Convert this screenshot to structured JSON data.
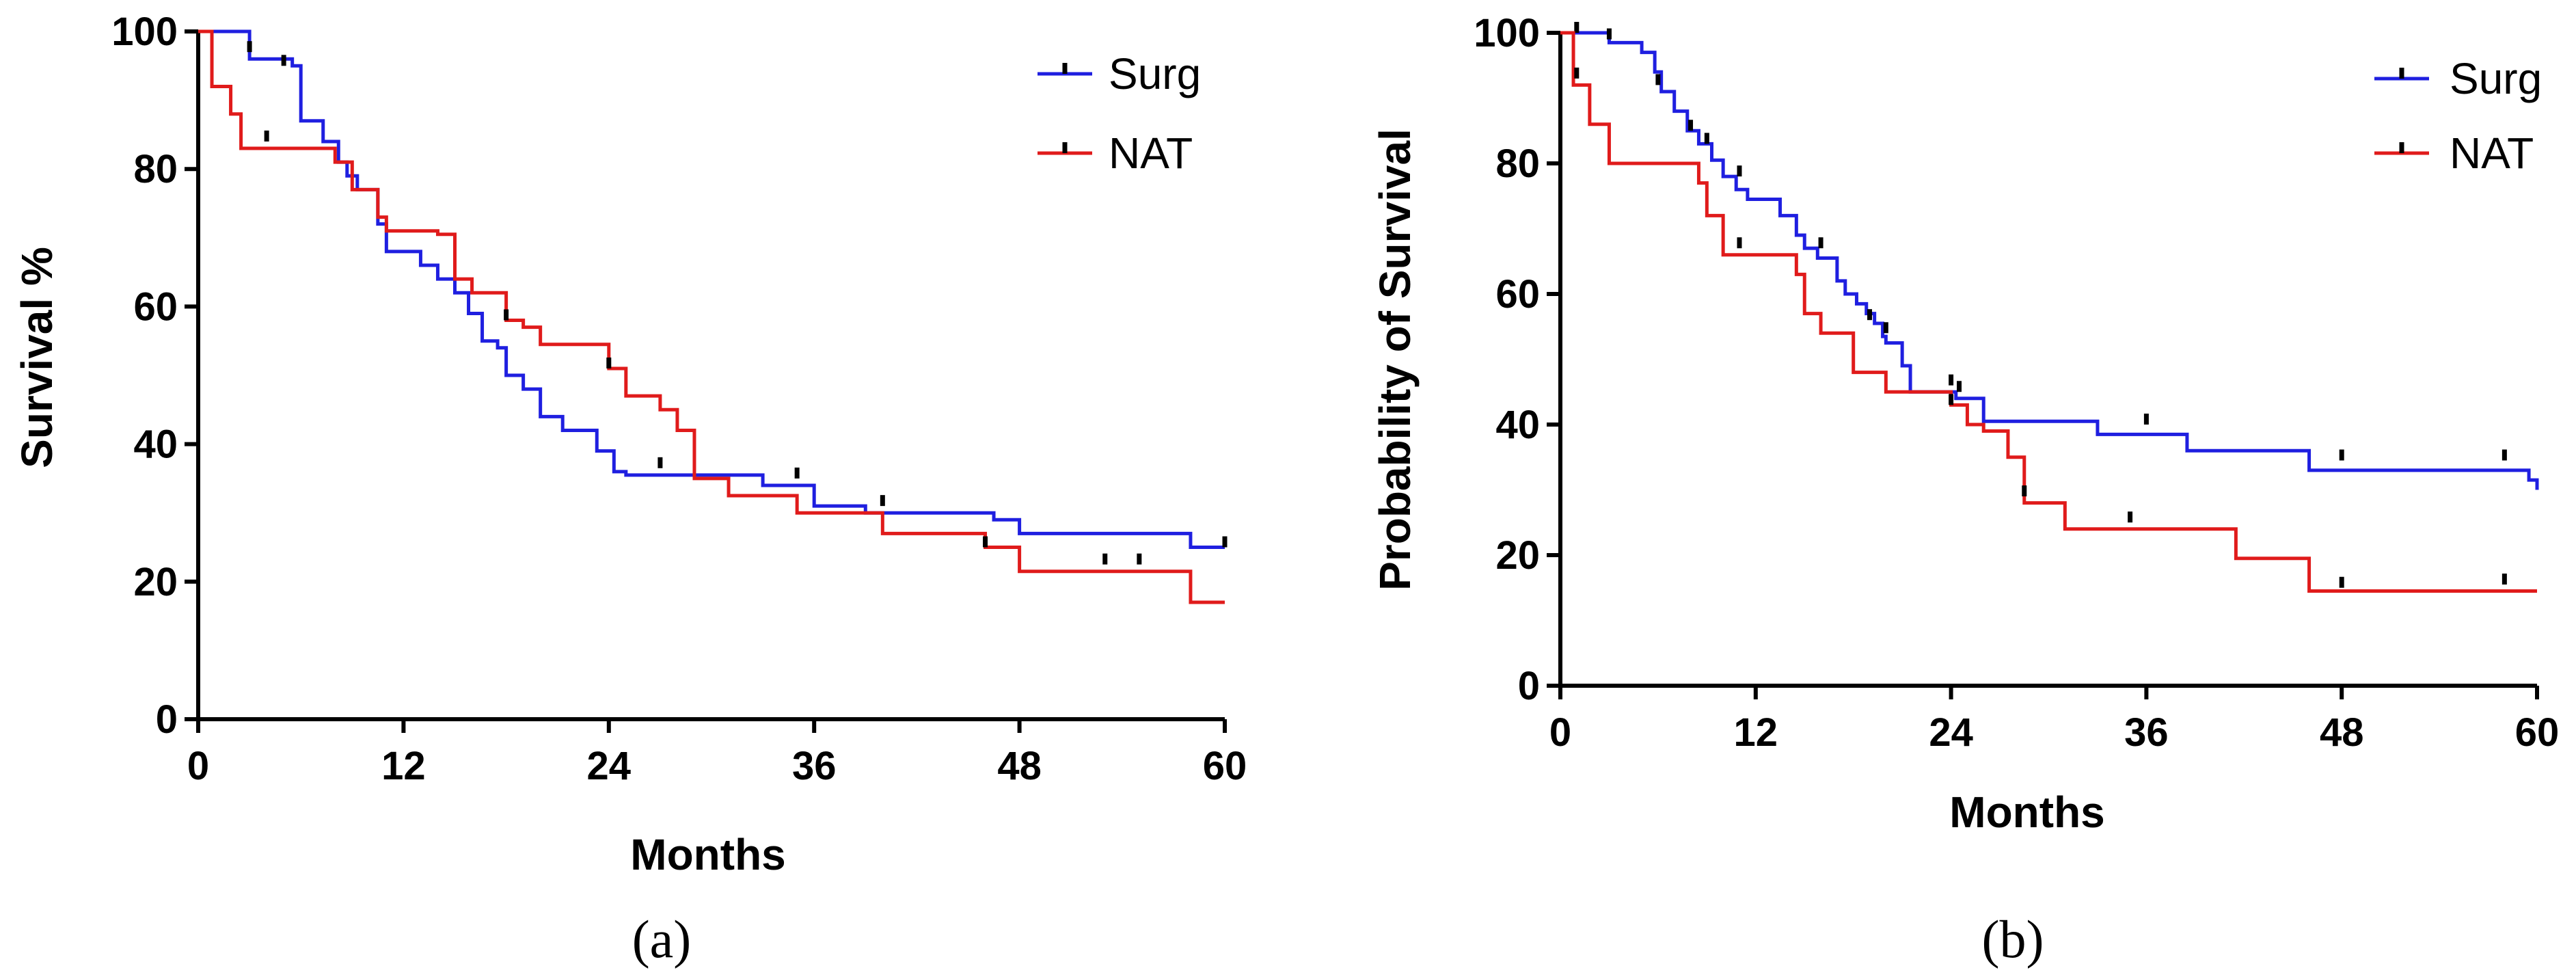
{
  "chart_data": [
    {
      "type": "line",
      "panel_label": "(a)",
      "ylabel": "Survival %",
      "xlabel": "Months",
      "xlim": [
        0,
        60
      ],
      "ylim": [
        0,
        100
      ],
      "xticks": [
        "0",
        "12",
        "24",
        "36",
        "48",
        "60"
      ],
      "yticks": [
        "0",
        "20",
        "40",
        "60",
        "80",
        "100"
      ],
      "xtick_values": [
        0,
        12,
        24,
        36,
        48,
        60
      ],
      "ytick_values": [
        0,
        20,
        40,
        60,
        80,
        100
      ],
      "legend_position": "top-right",
      "series": [
        {
          "name": "Surg",
          "color": "#1f1fe0",
          "steps": [
            [
              0,
              100
            ],
            [
              3,
              96
            ],
            [
              5.5,
              95
            ],
            [
              6,
              87
            ],
            [
              7.3,
              84
            ],
            [
              8.2,
              81
            ],
            [
              8.7,
              79
            ],
            [
              9.3,
              77
            ],
            [
              10.5,
              72
            ],
            [
              11,
              68
            ],
            [
              13,
              66
            ],
            [
              14,
              64
            ],
            [
              15,
              62
            ],
            [
              15.8,
              59
            ],
            [
              16.6,
              55
            ],
            [
              17.5,
              54
            ],
            [
              18,
              50
            ],
            [
              19,
              48
            ],
            [
              20,
              44
            ],
            [
              21.3,
              42
            ],
            [
              23.3,
              39
            ],
            [
              24.3,
              36
            ],
            [
              25,
              35.5
            ],
            [
              33,
              34
            ],
            [
              36,
              31
            ],
            [
              39,
              30
            ],
            [
              46.5,
              29
            ],
            [
              48,
              27
            ],
            [
              58,
              25
            ],
            [
              60,
              25
            ]
          ],
          "censors": [
            [
              3,
              97
            ],
            [
              5,
              95
            ],
            [
              27,
              36.5
            ],
            [
              35,
              35
            ],
            [
              40,
              31
            ],
            [
              60,
              25
            ]
          ]
        },
        {
          "name": "NAT",
          "color": "#e01b1b",
          "steps": [
            [
              0,
              100
            ],
            [
              0.8,
              92
            ],
            [
              1.9,
              88
            ],
            [
              2.5,
              83
            ],
            [
              8,
              81
            ],
            [
              9,
              77
            ],
            [
              10.5,
              73
            ],
            [
              11,
              71
            ],
            [
              14,
              70.5
            ],
            [
              15,
              64
            ],
            [
              16,
              62
            ],
            [
              18,
              58
            ],
            [
              19,
              57
            ],
            [
              20,
              54.5
            ],
            [
              24,
              51
            ],
            [
              25,
              47
            ],
            [
              27,
              45
            ],
            [
              28,
              42
            ],
            [
              29,
              35
            ],
            [
              31,
              32.5
            ],
            [
              35,
              30
            ],
            [
              40,
              27
            ],
            [
              46,
              25
            ],
            [
              48,
              21.5
            ],
            [
              58,
              17
            ],
            [
              60,
              17
            ]
          ],
          "censors": [
            [
              4,
              84
            ],
            [
              18,
              58
            ],
            [
              24,
              51
            ],
            [
              46,
              25
            ],
            [
              53,
              22.5
            ],
            [
              55,
              22.5
            ]
          ]
        }
      ]
    },
    {
      "type": "line",
      "panel_label": "(b)",
      "ylabel": "Probability of Survival",
      "xlabel": "Months",
      "xlim": [
        0,
        60
      ],
      "ylim": [
        0,
        100
      ],
      "xticks": [
        "0",
        "12",
        "24",
        "36",
        "48",
        "60"
      ],
      "yticks": [
        "0",
        "20",
        "40",
        "60",
        "80",
        "100"
      ],
      "xtick_values": [
        0,
        12,
        24,
        36,
        48,
        60
      ],
      "ytick_values": [
        0,
        20,
        40,
        60,
        80,
        100
      ],
      "legend_position": "top-right",
      "series": [
        {
          "name": "Surg",
          "color": "#1f1fe0",
          "steps": [
            [
              0,
              100
            ],
            [
              3,
              98.5
            ],
            [
              5,
              97
            ],
            [
              5.8,
              94
            ],
            [
              6.2,
              91
            ],
            [
              7,
              88
            ],
            [
              7.8,
              85
            ],
            [
              8.5,
              83
            ],
            [
              9.3,
              80.5
            ],
            [
              10,
              78
            ],
            [
              10.8,
              76
            ],
            [
              11.5,
              74.5
            ],
            [
              13.5,
              72
            ],
            [
              14.5,
              69
            ],
            [
              15,
              67
            ],
            [
              15.8,
              65.5
            ],
            [
              17,
              62
            ],
            [
              17.5,
              60
            ],
            [
              18.2,
              58.5
            ],
            [
              18.8,
              57
            ],
            [
              19.3,
              55.5
            ],
            [
              19.8,
              53.5
            ],
            [
              20,
              52.5
            ],
            [
              21,
              49
            ],
            [
              21.5,
              45
            ],
            [
              24.3,
              44
            ],
            [
              26,
              40.5
            ],
            [
              33,
              38.5
            ],
            [
              38.5,
              36
            ],
            [
              46,
              33
            ],
            [
              59.5,
              31.5
            ],
            [
              60,
              30
            ]
          ],
          "censors": [
            [
              1,
              100
            ],
            [
              3,
              99
            ],
            [
              6,
              92
            ],
            [
              8,
              85
            ],
            [
              9,
              83
            ],
            [
              11,
              78
            ],
            [
              16,
              67
            ],
            [
              19,
              56
            ],
            [
              20,
              54
            ],
            [
              24,
              46
            ],
            [
              24.5,
              45
            ],
            [
              36,
              40
            ],
            [
              48,
              34.5
            ],
            [
              58,
              34.5
            ]
          ]
        },
        {
          "name": "NAT",
          "color": "#e01b1b",
          "steps": [
            [
              0,
              100
            ],
            [
              0.8,
              92
            ],
            [
              1.8,
              86
            ],
            [
              3,
              80
            ],
            [
              8.5,
              77
            ],
            [
              9,
              72
            ],
            [
              10,
              66
            ],
            [
              14.5,
              63
            ],
            [
              15,
              57
            ],
            [
              16,
              54
            ],
            [
              18,
              48
            ],
            [
              20,
              45
            ],
            [
              24,
              43
            ],
            [
              25,
              40
            ],
            [
              26,
              39
            ],
            [
              27.5,
              35
            ],
            [
              28.5,
              28
            ],
            [
              31,
              24
            ],
            [
              41.5,
              19.5
            ],
            [
              46,
              14.5
            ],
            [
              60,
              14.5
            ]
          ],
          "censors": [
            [
              1,
              93
            ],
            [
              11,
              67
            ],
            [
              24,
              43
            ],
            [
              28.5,
              29
            ],
            [
              35,
              25
            ],
            [
              48,
              15
            ],
            [
              58,
              15.5
            ]
          ]
        }
      ]
    }
  ]
}
